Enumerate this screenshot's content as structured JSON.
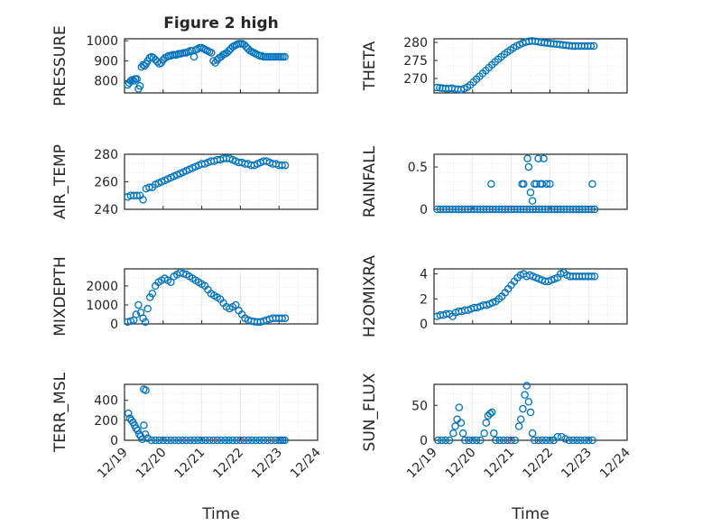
{
  "figure": {
    "title": "Figure 2 high",
    "x_tick_labels": [
      "12/19",
      "12/20",
      "12/21",
      "12/22",
      "12/23",
      "12/24"
    ],
    "xlabel": "Time",
    "marker_color": "#0072BD",
    "axis_color": "#262626",
    "grid_color": "#dcdcdc"
  },
  "chart_data": [
    {
      "type": "scatter",
      "ylabel": "PRESSURE",
      "yticks": [
        800,
        900,
        1000
      ],
      "ylim": [
        740,
        1010
      ],
      "xlim": [
        0,
        5
      ],
      "x": [
        0.08,
        0.12,
        0.16,
        0.2,
        0.24,
        0.28,
        0.32,
        0.36,
        0.4,
        0.44,
        0.48,
        0.52,
        0.56,
        0.6,
        0.65,
        0.7,
        0.75,
        0.8,
        0.85,
        0.9,
        0.95,
        1.0,
        1.05,
        1.1,
        1.15,
        1.2,
        1.25,
        1.3,
        1.35,
        1.4,
        1.45,
        1.5,
        1.55,
        1.6,
        1.65,
        1.7,
        1.75,
        1.8,
        1.85,
        1.9,
        1.95,
        2.0,
        2.05,
        2.1,
        2.15,
        2.2,
        2.25,
        2.3,
        2.35,
        2.4,
        2.45,
        2.5,
        2.55,
        2.6,
        2.65,
        2.7,
        2.75,
        2.8,
        2.85,
        2.9,
        2.95,
        3.0,
        3.05,
        3.1,
        3.15,
        3.2,
        3.25,
        3.3,
        3.35,
        3.4,
        3.45,
        3.5,
        3.55,
        3.6,
        3.65,
        3.7,
        3.75,
        3.8,
        3.85,
        3.9,
        3.95,
        4.0,
        4.05,
        4.1,
        4.15
      ],
      "y": [
        780,
        790,
        800,
        805,
        800,
        810,
        810,
        760,
        775,
        870,
        880,
        875,
        885,
        900,
        915,
        920,
        915,
        905,
        895,
        885,
        890,
        905,
        915,
        920,
        925,
        925,
        930,
        930,
        930,
        935,
        935,
        938,
        940,
        940,
        945,
        950,
        950,
        920,
        955,
        960,
        965,
        965,
        960,
        955,
        950,
        945,
        940,
        900,
        890,
        905,
        915,
        920,
        930,
        935,
        940,
        950,
        960,
        970,
        975,
        980,
        985,
        985,
        985,
        980,
        970,
        960,
        950,
        945,
        940,
        935,
        930,
        925,
        925,
        920,
        920,
        920,
        920,
        920,
        920,
        920,
        920,
        920,
        920,
        920,
        920
      ]
    },
    {
      "type": "scatter",
      "ylabel": "THETA",
      "yticks": [
        270,
        275,
        280
      ],
      "ylim": [
        266,
        281
      ],
      "xlim": [
        0,
        5
      ],
      "x": [
        0.08,
        0.15,
        0.22,
        0.3,
        0.38,
        0.46,
        0.54,
        0.62,
        0.7,
        0.78,
        0.86,
        0.94,
        1.02,
        1.1,
        1.18,
        1.26,
        1.34,
        1.42,
        1.5,
        1.58,
        1.66,
        1.74,
        1.82,
        1.9,
        1.98,
        2.06,
        2.14,
        2.22,
        2.3,
        2.38,
        2.46,
        2.54,
        2.62,
        2.7,
        2.78,
        2.86,
        2.94,
        3.02,
        3.1,
        3.18,
        3.26,
        3.34,
        3.42,
        3.5,
        3.58,
        3.66,
        3.74,
        3.82,
        3.9,
        3.98,
        4.06,
        4.14
      ],
      "y": [
        267.5,
        267.4,
        267.3,
        267.2,
        267.2,
        267.3,
        267.1,
        267.0,
        266.9,
        267.2,
        267.6,
        268.2,
        269.0,
        269.8,
        270.6,
        271.4,
        272.2,
        273.0,
        273.8,
        274.6,
        275.3,
        276.0,
        276.7,
        277.3,
        277.9,
        278.5,
        279.0,
        279.4,
        279.8,
        280.1,
        280.3,
        280.4,
        280.3,
        280.2,
        280.0,
        279.9,
        279.8,
        279.7,
        279.6,
        279.5,
        279.4,
        279.3,
        279.2,
        279.1,
        279.0,
        279.0,
        279.0,
        279.0,
        279.0,
        279.0,
        279.0,
        279.0
      ]
    },
    {
      "type": "scatter",
      "ylabel": "AIR_TEMP",
      "yticks": [
        240,
        260,
        280
      ],
      "ylim": [
        240,
        280
      ],
      "xlim": [
        0,
        5
      ],
      "x": [
        0.08,
        0.16,
        0.24,
        0.32,
        0.4,
        0.48,
        0.56,
        0.64,
        0.72,
        0.8,
        0.88,
        0.96,
        1.04,
        1.12,
        1.2,
        1.28,
        1.36,
        1.44,
        1.52,
        1.6,
        1.68,
        1.76,
        1.84,
        1.92,
        2.0,
        2.08,
        2.16,
        2.24,
        2.32,
        2.4,
        2.48,
        2.56,
        2.64,
        2.72,
        2.8,
        2.88,
        2.96,
        3.04,
        3.12,
        3.2,
        3.28,
        3.36,
        3.44,
        3.52,
        3.6,
        3.68,
        3.76,
        3.84,
        3.92,
        4.0,
        4.08,
        4.16
      ],
      "y": [
        249,
        250,
        250,
        250,
        250,
        247,
        255,
        256,
        256,
        258,
        259,
        260,
        261,
        262,
        263,
        264,
        265,
        266,
        267,
        268,
        269,
        270,
        271,
        272,
        273,
        273,
        274,
        275,
        275,
        276,
        276,
        277,
        277,
        277,
        276,
        275,
        274,
        274,
        273,
        273,
        272,
        272,
        273,
        274,
        275,
        275,
        274,
        273,
        273,
        272,
        272,
        272
      ]
    },
    {
      "type": "scatter",
      "ylabel": "RAINFALL",
      "yticks": [
        0,
        0.5
      ],
      "ylim": [
        0,
        0.65
      ],
      "xlim": [
        0,
        5
      ],
      "x": [
        0.08,
        0.16,
        0.24,
        0.32,
        0.4,
        0.48,
        0.56,
        0.64,
        0.72,
        0.8,
        0.88,
        0.96,
        1.04,
        1.12,
        1.2,
        1.28,
        1.36,
        1.44,
        1.52,
        1.6,
        1.68,
        1.76,
        1.84,
        1.92,
        2.0,
        2.08,
        2.16,
        2.24,
        2.32,
        2.4,
        2.48,
        2.56,
        2.64,
        2.72,
        2.8,
        2.88,
        2.96,
        3.04,
        3.12,
        3.2,
        3.28,
        3.36,
        3.44,
        3.52,
        3.6,
        3.68,
        3.76,
        3.84,
        3.92,
        4.0,
        4.08,
        4.16,
        1.48,
        2.28,
        2.32,
        2.42,
        2.45,
        2.5,
        2.55,
        2.6,
        2.65,
        2.7,
        2.75,
        2.8,
        2.84,
        2.92,
        3.0,
        4.1
      ],
      "y": [
        0,
        0,
        0,
        0,
        0,
        0,
        0,
        0,
        0,
        0,
        0,
        0,
        0,
        0,
        0,
        0,
        0,
        0,
        0,
        0,
        0,
        0,
        0,
        0,
        0,
        0,
        0,
        0,
        0,
        0,
        0,
        0,
        0,
        0,
        0,
        0,
        0,
        0,
        0,
        0,
        0,
        0,
        0,
        0,
        0,
        0,
        0,
        0,
        0,
        0,
        0,
        0,
        0.3,
        0.3,
        0.3,
        0.6,
        0.5,
        0.2,
        0.1,
        0.3,
        0.3,
        0.6,
        0.3,
        0.3,
        0.6,
        0.3,
        0.3,
        0.3
      ]
    },
    {
      "type": "scatter",
      "ylabel": "MIXDEPTH",
      "yticks": [
        0,
        1000,
        2000
      ],
      "ylim": [
        0,
        2900
      ],
      "xlim": [
        0,
        5
      ],
      "x": [
        0.08,
        0.16,
        0.24,
        0.3,
        0.36,
        0.42,
        0.48,
        0.54,
        0.6,
        0.66,
        0.72,
        0.8,
        0.88,
        0.96,
        1.04,
        1.12,
        1.2,
        1.28,
        1.36,
        1.44,
        1.52,
        1.6,
        1.68,
        1.76,
        1.84,
        1.92,
        2.0,
        2.08,
        2.16,
        2.24,
        2.32,
        2.4,
        2.48,
        2.56,
        2.64,
        2.72,
        2.8,
        2.88,
        2.96,
        3.04,
        3.12,
        3.2,
        3.28,
        3.36,
        3.44,
        3.52,
        3.6,
        3.68,
        3.76,
        3.84,
        3.92,
        4.0,
        4.08,
        4.16
      ],
      "y": [
        100,
        150,
        200,
        500,
        1000,
        600,
        300,
        100,
        800,
        1400,
        1600,
        2000,
        2200,
        2300,
        2400,
        2300,
        2200,
        2500,
        2600,
        2700,
        2650,
        2600,
        2500,
        2400,
        2300,
        2200,
        2100,
        2000,
        1800,
        1600,
        1500,
        1400,
        1300,
        1100,
        900,
        800,
        900,
        1000,
        700,
        500,
        300,
        200,
        150,
        120,
        100,
        100,
        150,
        200,
        250,
        300,
        300,
        300,
        300,
        300
      ]
    },
    {
      "type": "scatter",
      "ylabel": "H2OMIXRA",
      "yticks": [
        0,
        2,
        4
      ],
      "ylim": [
        0,
        4.4
      ],
      "xlim": [
        0,
        5
      ],
      "x": [
        0.08,
        0.16,
        0.24,
        0.32,
        0.4,
        0.48,
        0.56,
        0.64,
        0.72,
        0.8,
        0.88,
        0.96,
        1.04,
        1.12,
        1.2,
        1.28,
        1.36,
        1.44,
        1.52,
        1.6,
        1.68,
        1.76,
        1.84,
        1.92,
        2.0,
        2.08,
        2.16,
        2.24,
        2.32,
        2.4,
        2.48,
        2.56,
        2.64,
        2.72,
        2.8,
        2.88,
        2.96,
        3.04,
        3.12,
        3.2,
        3.28,
        3.36,
        3.44,
        3.52,
        3.6,
        3.68,
        3.76,
        3.84,
        3.92,
        4.0,
        4.08,
        4.16
      ],
      "y": [
        0.6,
        0.7,
        0.7,
        0.8,
        0.8,
        0.6,
        0.9,
        1.0,
        1.0,
        1.1,
        1.1,
        1.2,
        1.3,
        1.3,
        1.4,
        1.5,
        1.5,
        1.6,
        1.7,
        1.8,
        2.0,
        2.2,
        2.5,
        2.8,
        3.1,
        3.4,
        3.7,
        3.9,
        4.0,
        3.8,
        3.9,
        3.8,
        3.7,
        3.6,
        3.5,
        3.4,
        3.4,
        3.5,
        3.6,
        3.7,
        4.0,
        4.1,
        3.9,
        3.8,
        3.8,
        3.8,
        3.8,
        3.8,
        3.8,
        3.8,
        3.8,
        3.8
      ]
    },
    {
      "type": "scatter",
      "ylabel": "TERR_MSL",
      "yticks": [
        0,
        200,
        400
      ],
      "ylim": [
        0,
        560
      ],
      "xlim": [
        0,
        5
      ],
      "x": [
        0.1,
        0.14,
        0.18,
        0.22,
        0.26,
        0.3,
        0.34,
        0.38,
        0.42,
        0.46,
        0.5,
        0.54,
        0.6,
        0.7,
        0.8,
        0.9,
        1.0,
        1.1,
        1.2,
        1.3,
        1.4,
        1.5,
        1.6,
        1.7,
        1.8,
        1.9,
        2.0,
        2.1,
        2.2,
        2.3,
        2.4,
        2.5,
        2.6,
        2.7,
        2.8,
        2.9,
        3.0,
        3.1,
        3.2,
        3.3,
        3.4,
        3.5,
        3.6,
        3.7,
        3.8,
        3.9,
        4.0,
        4.05,
        4.1,
        4.15,
        0.5,
        0.55
      ],
      "y": [
        270,
        220,
        200,
        180,
        150,
        120,
        100,
        60,
        40,
        10,
        150,
        60,
        20,
        0,
        0,
        0,
        0,
        0,
        0,
        0,
        0,
        0,
        0,
        0,
        0,
        0,
        0,
        0,
        0,
        0,
        0,
        0,
        0,
        0,
        0,
        0,
        0,
        0,
        0,
        0,
        0,
        0,
        0,
        0,
        0,
        0,
        0,
        0,
        0,
        0,
        510,
        500
      ]
    },
    {
      "type": "scatter",
      "ylabel": "SUN_FLUX",
      "yticks": [
        0,
        50
      ],
      "ylim": [
        0,
        80
      ],
      "xlim": [
        0,
        5
      ],
      "x": [
        0.1,
        0.2,
        0.3,
        0.4,
        0.5,
        0.55,
        0.6,
        0.65,
        0.7,
        0.75,
        0.8,
        0.9,
        1.0,
        1.1,
        1.2,
        1.3,
        1.35,
        1.4,
        1.45,
        1.5,
        1.55,
        1.6,
        1.7,
        1.8,
        1.9,
        2.0,
        2.1,
        2.2,
        2.25,
        2.3,
        2.35,
        2.4,
        2.45,
        2.5,
        2.55,
        2.6,
        2.7,
        2.8,
        2.9,
        3.0,
        3.1,
        3.2,
        3.3,
        3.4,
        3.5,
        3.6,
        3.7,
        3.8,
        3.9,
        4.0,
        4.1
      ],
      "y": [
        0,
        0,
        0,
        0,
        10,
        20,
        30,
        47,
        25,
        10,
        0,
        0,
        0,
        0,
        0,
        10,
        25,
        35,
        38,
        40,
        10,
        0,
        0,
        0,
        0,
        0,
        0,
        20,
        30,
        45,
        65,
        78,
        55,
        40,
        10,
        0,
        0,
        0,
        0,
        0,
        0,
        5,
        5,
        2,
        0,
        0,
        0,
        0,
        0,
        0,
        0
      ]
    }
  ]
}
